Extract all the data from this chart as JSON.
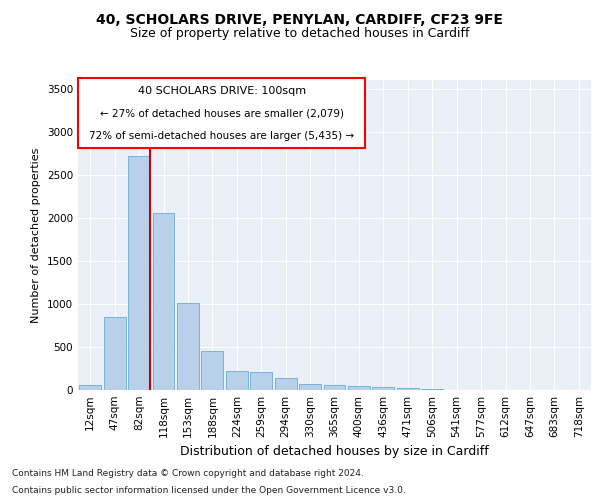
{
  "title1": "40, SCHOLARS DRIVE, PENYLAN, CARDIFF, CF23 9FE",
  "title2": "Size of property relative to detached houses in Cardiff",
  "xlabel": "Distribution of detached houses by size in Cardiff",
  "ylabel": "Number of detached properties",
  "footnote1": "Contains HM Land Registry data © Crown copyright and database right 2024.",
  "footnote2": "Contains public sector information licensed under the Open Government Licence v3.0.",
  "annotation_title": "40 SCHOLARS DRIVE: 100sqm",
  "annotation_line2": "← 27% of detached houses are smaller (2,079)",
  "annotation_line3": "72% of semi-detached houses are larger (5,435) →",
  "bar_color": "#b8d0ea",
  "bar_edge_color": "#6aaed6",
  "ref_line_color": "#cc0000",
  "background_color": "#eaeff8",
  "grid_color": "#ffffff",
  "categories": [
    "12sqm",
    "47sqm",
    "82sqm",
    "118sqm",
    "153sqm",
    "188sqm",
    "224sqm",
    "259sqm",
    "294sqm",
    "330sqm",
    "365sqm",
    "400sqm",
    "436sqm",
    "471sqm",
    "506sqm",
    "541sqm",
    "577sqm",
    "612sqm",
    "647sqm",
    "683sqm",
    "718sqm"
  ],
  "values": [
    60,
    850,
    2720,
    2060,
    1010,
    455,
    215,
    210,
    140,
    70,
    55,
    50,
    30,
    20,
    8,
    4,
    3,
    2,
    2,
    1,
    1
  ],
  "ylim": [
    0,
    3600
  ],
  "yticks": [
    0,
    500,
    1000,
    1500,
    2000,
    2500,
    3000,
    3500
  ],
  "ref_bar_index": 2,
  "title1_fontsize": 10,
  "title2_fontsize": 9,
  "xlabel_fontsize": 9,
  "ylabel_fontsize": 8,
  "tick_fontsize": 7.5,
  "footnote_fontsize": 6.5
}
